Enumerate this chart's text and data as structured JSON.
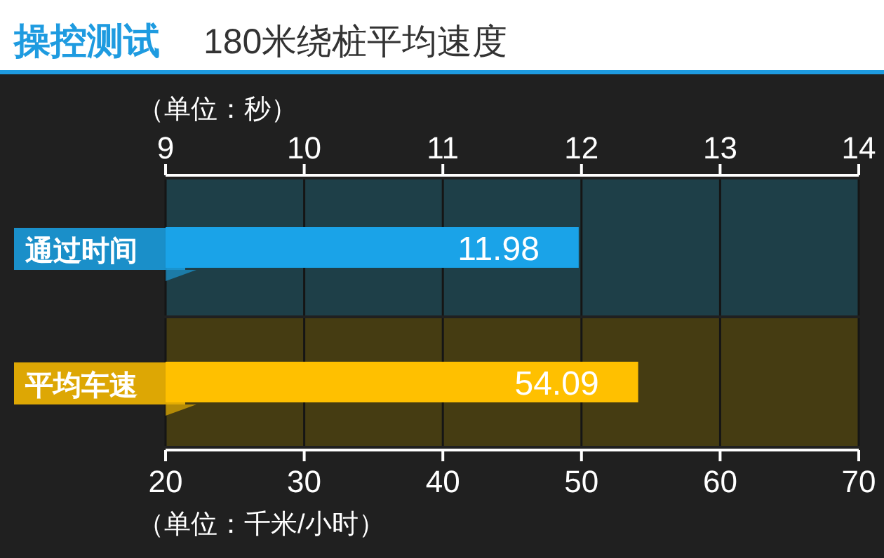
{
  "chart_data": [
    {
      "type": "bar",
      "orientation": "horizontal",
      "title": "操控测试",
      "subtitle": "180米绕桩平均速度",
      "xlabel": "（单位：秒）",
      "categories": [
        "通过时间"
      ],
      "values": [
        11.98
      ],
      "color": "#1aa3e8",
      "xlim": [
        9,
        14
      ],
      "xticks": [
        9,
        10,
        11,
        12,
        13,
        14
      ],
      "grid": "x",
      "data_labels": true
    },
    {
      "type": "bar",
      "orientation": "horizontal",
      "xlabel": "（单位：千米/小时）",
      "categories": [
        "平均车速"
      ],
      "values": [
        54.09
      ],
      "color": "#ffc000",
      "xlim": [
        20,
        70
      ],
      "xticks": [
        20,
        30,
        40,
        50,
        60,
        70
      ],
      "grid": "x",
      "data_labels": true
    }
  ]
}
